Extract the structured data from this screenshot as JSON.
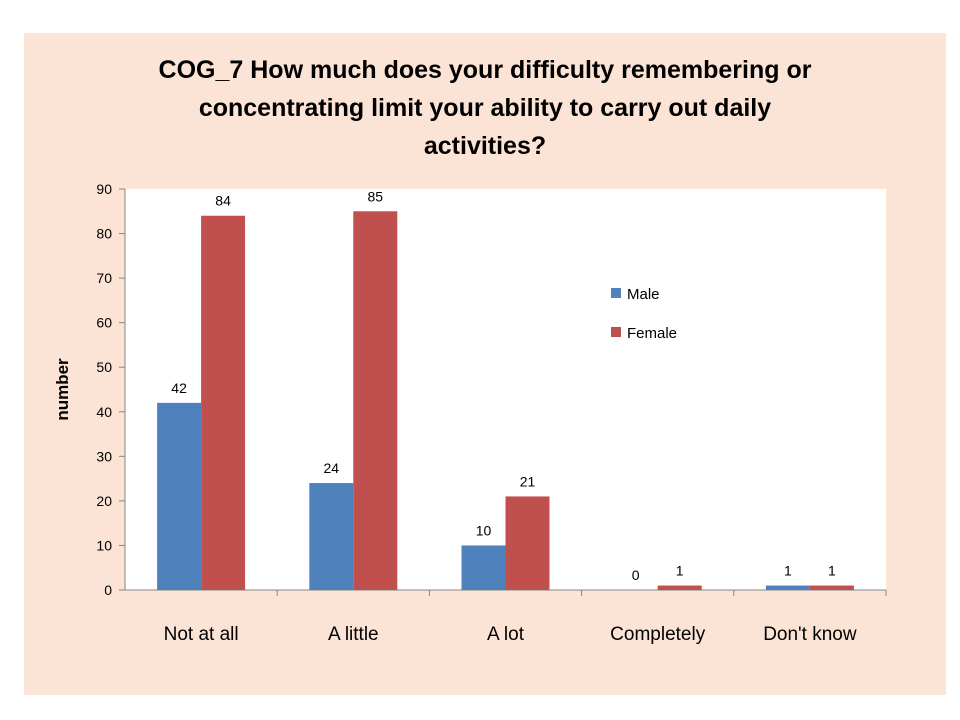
{
  "chart_data": {
    "type": "bar",
    "title_lines": [
      "COG_7 How much does your difficulty remembering or",
      "concentrating limit your ability to carry out daily",
      "activities?"
    ],
    "xlabel": "",
    "ylabel": "number",
    "categories": [
      "Not at all",
      "A little",
      "A lot",
      "Completely",
      "Don't know"
    ],
    "series": [
      {
        "name": "Male",
        "color": "#4f81bd",
        "values": [
          42,
          24,
          10,
          0,
          1
        ]
      },
      {
        "name": "Female",
        "color": "#c0504d",
        "values": [
          84,
          85,
          21,
          1,
          1
        ]
      }
    ],
    "ylim": [
      0,
      90
    ],
    "yticks": [
      0,
      10,
      20,
      30,
      40,
      50,
      60,
      70,
      80,
      90
    ],
    "grid": false,
    "legend_position": "right",
    "plot_background": "#ffffff",
    "chart_background": "#fbe3d6"
  }
}
